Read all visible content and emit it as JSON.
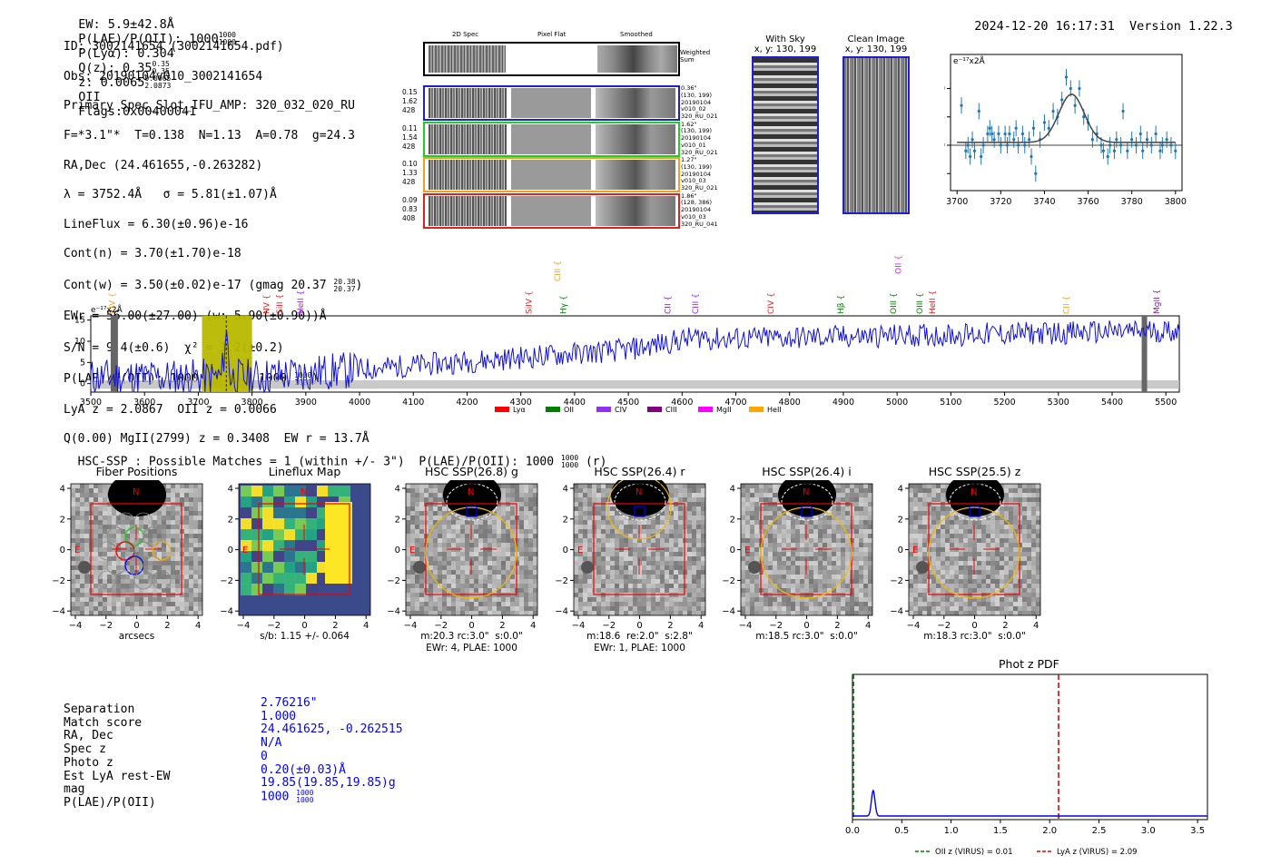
{
  "header": {
    "ew": "EW: 5.9±42.8Å",
    "plae_label": "P(LAE)/P(OII): 1000",
    "plae_frac": [
      "1000",
      "1000"
    ],
    "plya": "P(Lyα): 0.304",
    "qz_label": "Q(z): 0.35",
    "qz_frac": [
      "0.35",
      "0.35"
    ],
    "z_label": "z: 0.0065",
    "z_frac": [
      "0.0065",
      "2.0873"
    ],
    "z_line": "OII",
    "flags": "Flags:0x00400041",
    "timestamp": "2024-12-20 16:17:31",
    "version": "Version 1.22.3"
  },
  "info": {
    "id": "ID: 3002141654 (3002141654.pdf)",
    "obs": "Obs: 20190104v010_3002141654",
    "primary": "Primary Spec_Slot_IFU_AMP: 320_032_020_RU",
    "params": "F=*3.1\"*  T=0.138  N=1.13  A=0.78  g=24.3",
    "radec": "RA,Dec (24.461655,-0.263282)",
    "lambda": "λ = 3752.4Å   σ = 5.81(±1.07)Å",
    "lineflux": "LineFlux = 6.30(±0.96)e-16",
    "contn": "Cont(n) = 3.70(±1.70)e-18",
    "contw": "Cont(w) = 3.50(±0.02)e-17 (gmag 20.37",
    "contw_frac": [
      "20.38",
      "20.37"
    ],
    "ewr": "EWr = 56.00(±27.00) (w: 5.90(±0.90))Å",
    "sn": "S/N = 9.4(±0.6)  χ² = 1.2(±0.2)",
    "plae": "P(LAE)/P(OII): 1000",
    "plae_frac": [
      "1000",
      "1000"
    ],
    "plae_w": "(w: 1000",
    "plae_w_frac": [
      "1000",
      "1000"
    ],
    "lya": "LyA z = 2.0867  OII z = 0.0066",
    "q": "Q(0.00) MgII(2799) z = 0.3408  EW r = 13.7Å"
  },
  "spec2d": {
    "headers": [
      "2D Spec",
      "Pixel Flat",
      "Smoothed"
    ],
    "weighted": "Weighted Sum",
    "rows": [
      {
        "left": [
          "0.15",
          "1.62",
          "428"
        ],
        "right": [
          "0.36\"",
          "(130, 199)",
          "20190104",
          "v010_02",
          "320_RU_021"
        ],
        "color": "#1f1fd0"
      },
      {
        "left": [
          "0.11",
          "1.54",
          "428"
        ],
        "right": [
          "1.62\"",
          "(130, 199)",
          "20190104",
          "v010_01",
          "320_RU_021"
        ],
        "color": "#22cc22"
      },
      {
        "left": [
          "0.10",
          "1.33",
          "428"
        ],
        "right": [
          "1.27\"",
          "(130, 199)",
          "20190104",
          "v010_03",
          "320_RU_021"
        ],
        "color": "#f0a020"
      },
      {
        "left": [
          "0.09",
          "0.83",
          "408"
        ],
        "right": [
          "1.86\"",
          "(128, 386)",
          "20190104",
          "v010_03",
          "320_RU_041"
        ],
        "color": "#e02020"
      }
    ]
  },
  "skyimgs": {
    "withsky": "With Sky",
    "withsky_xy": "x, y: 130, 199",
    "clean": "Clean Image",
    "clean_xy": "x, y: 130, 199"
  },
  "fitplot": {
    "ylabel": "e⁻¹⁷x2Å",
    "xticks": [
      "3700",
      "3720",
      "3740",
      "3760",
      "3780",
      "3800"
    ],
    "yticks": [
      "10",
      "5",
      "0",
      "-5"
    ]
  },
  "spectrum": {
    "ylabel": "e⁻¹⁷x2Å",
    "xticks": [
      "3500",
      "3600",
      "3700",
      "3800",
      "3900",
      "4000",
      "4100",
      "4200",
      "4300",
      "4400",
      "4500",
      "4600",
      "4700",
      "4800",
      "4900",
      "5000",
      "5100",
      "5200",
      "5300",
      "5400",
      "5500"
    ],
    "yticks": [
      "15",
      "10",
      "5",
      "0"
    ],
    "lines": [
      {
        "name": "CIV",
        "x": 3540,
        "color": "#f0a020"
      },
      {
        "name": "NV",
        "x": 3827,
        "color": "#e02020"
      },
      {
        "name": "SiII",
        "x": 3851,
        "color": "#e02020"
      },
      {
        "name": "HeII",
        "x": 3890,
        "color": "#a020f0"
      },
      {
        "name": "SiIV",
        "x": 4315,
        "color": "#e02020"
      },
      {
        "name": "CIII",
        "x": 4368,
        "color": "#f0a020"
      },
      {
        "name": "Hγ",
        "x": 4379,
        "color": "#008000"
      },
      {
        "name": "CII",
        "x": 4573,
        "color": "#8020a0"
      },
      {
        "name": "CIII",
        "x": 4625,
        "color": "#a020f0"
      },
      {
        "name": "CIV",
        "x": 4765,
        "color": "#e02020"
      },
      {
        "name": "Hβ",
        "x": 4895,
        "color": "#008000"
      },
      {
        "name": "OII",
        "x": 5002,
        "color": "#e020e0"
      },
      {
        "name": "OIII",
        "x": 4993,
        "color": "#008000"
      },
      {
        "name": "OIII",
        "x": 5042,
        "color": "#008000"
      },
      {
        "name": "HeII",
        "x": 5066,
        "color": "#e02020"
      },
      {
        "name": "CII",
        "x": 5315,
        "color": "#f0a020"
      },
      {
        "name": "MgII",
        "x": 5483,
        "color": "#8020a0"
      }
    ],
    "legend": [
      {
        "name": "Lyα",
        "color": "#ff0000"
      },
      {
        "name": "OII",
        "color": "#008000"
      },
      {
        "name": "CIV",
        "color": "#9030f0"
      },
      {
        "name": "CIII",
        "color": "#800080"
      },
      {
        "name": "MgII",
        "color": "#ff00ff"
      },
      {
        "name": "HeII",
        "color": "#ffa500"
      }
    ]
  },
  "hsc": {
    "summary": "HSC-SSP : Possible Matches = 1 (within +/- 3\")  P(LAE)/P(OII): 1000",
    "summary_frac": [
      "1000",
      "1000"
    ],
    "summary_suffix": "(r)",
    "panels": [
      {
        "title": "Fiber Positions",
        "cap1": "arcsecs",
        "cap2": ""
      },
      {
        "title": "Lineflux Map",
        "cap1": "s/b: 1.15 +/- 0.064",
        "cap2": ""
      },
      {
        "title": "HSC SSP(26.8) g",
        "cap1": "m:20.3 rc:3.0\"  s:0.0\"",
        "cap2": "EWr: 4, PLAE: 1000"
      },
      {
        "title": "HSC SSP(26.4) r",
        "cap1": "m:18.6  re:2.0\"  s:2.8\"",
        "cap2": "EWr: 1, PLAE: 1000"
      },
      {
        "title": "HSC SSP(26.4) i",
        "cap1": "m:18.5 rc:3.0\"  s:0.0\"",
        "cap2": ""
      },
      {
        "title": "HSC SSP(25.5) z",
        "cap1": "m:18.3 rc:3.0\"  s:0.0\"",
        "cap2": ""
      }
    ],
    "xticks": [
      "−4",
      "−2",
      "0",
      "2",
      "4"
    ],
    "yticks": [
      "4",
      "2",
      "0",
      "−2",
      "−4"
    ],
    "n_label": "N",
    "e_label": "E"
  },
  "match": {
    "keys": [
      "Separation",
      "Match score",
      "RA, Dec",
      "Spec z",
      "Photo z",
      "Est LyA rest-EW",
      "mag",
      "P(LAE)/P(OII)"
    ],
    "values": [
      "2.76216\"",
      "1.000",
      "24.461625, -0.262515",
      "N/A",
      "0",
      "0.20(±0.03)Å",
      "19.85(19.85,19.85)g",
      "1000"
    ],
    "plae_frac": [
      "1000",
      "1000"
    ]
  },
  "photz": {
    "title": "Phot z PDF",
    "xticks": [
      "0.0",
      "0.5",
      "1.0",
      "1.5",
      "2.0",
      "2.5",
      "3.0",
      "3.5"
    ],
    "legend_oii": "OII z (VIRUS) = 0.01",
    "legend_lya": "LyA z (VIRUS) = 2.09",
    "oii_z": 0.01,
    "lya_z": 2.09
  }
}
